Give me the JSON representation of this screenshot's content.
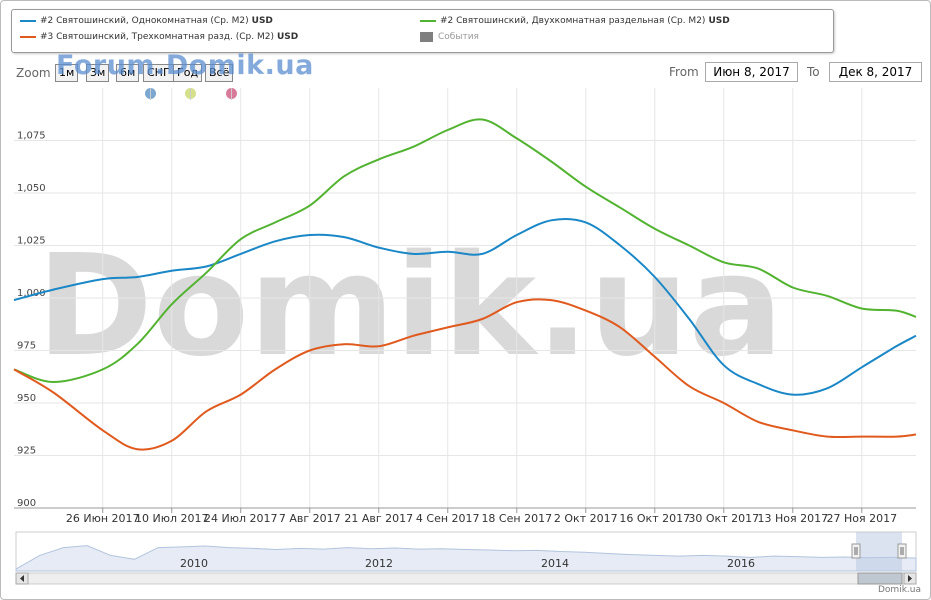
{
  "legend": {
    "items": [
      {
        "label": "#2 Святошинский, Однокомнатная (Ср. М2)",
        "unit": "USD",
        "color": "#1a87c7",
        "kind": "line"
      },
      {
        "label": "#2 Святошинский, Двухкомнатная раздельная (Ср. М2)",
        "unit": "USD",
        "color": "#52b330",
        "kind": "line"
      },
      {
        "label": "#3 Святошинский, Трехкомнатная разд. (Ср. М2)",
        "unit": "USD",
        "color": "#e05a1e",
        "kind": "line"
      },
      {
        "label": "События",
        "unit": "",
        "color": "#7f7f7f",
        "kind": "box"
      }
    ]
  },
  "zoom": {
    "label": "Zoom",
    "buttons": [
      "1м",
      "3м",
      "6м",
      "СНГ",
      "Год",
      "Всё"
    ]
  },
  "range": {
    "from_label": "From",
    "from_value": "Июн 8, 2017",
    "to_label": "To",
    "to_value": "Дек 8, 2017"
  },
  "event_markers": [
    "#7ba7d0",
    "#d4e08a",
    "#d97a9a"
  ],
  "watermark": {
    "small": "Forum.Domik.ua",
    "big": "Domik.ua"
  },
  "footer": {
    "credit": "Domik.ua"
  },
  "navigator": {
    "year_labels": [
      "2010",
      "2012",
      "2014",
      "2016"
    ],
    "colors": {
      "fill": "#e6ebf5",
      "line": "#b2c4dd"
    }
  },
  "chart_data": {
    "type": "line",
    "title": "",
    "xlabel": "",
    "ylabel": "",
    "x_range": [
      "2017-06-08",
      "2017-12-08"
    ],
    "ylim": [
      900,
      1100
    ],
    "grid": true,
    "legend_position": "top",
    "y_ticks": [
      900,
      925,
      950,
      975,
      1000,
      1025,
      1050,
      1075
    ],
    "y_tick_labels": [
      "900",
      "925",
      "950",
      "975",
      "1,000",
      "1,025",
      "1,050",
      "1,075"
    ],
    "x_tick_labels": [
      "26 Июн 2017",
      "10 Июл 2017",
      "24 Июл 2017",
      "7 Авг 2017",
      "21 Авг 2017",
      "4 Сен 2017",
      "18 Сен 2017",
      "2 Окт 2017",
      "16 Окт 2017",
      "30 Окт 2017",
      "13 Ноя 2017",
      "27 Ноя 2017"
    ],
    "x_tick_dates": [
      "2017-06-26",
      "2017-07-10",
      "2017-07-24",
      "2017-08-07",
      "2017-08-21",
      "2017-09-04",
      "2017-09-18",
      "2017-10-02",
      "2017-10-16",
      "2017-10-30",
      "2017-11-13",
      "2017-11-27"
    ],
    "series": [
      {
        "name": "#2 Святошинский, Однокомнатная (Ср. М2)",
        "color": "#1a87c7",
        "x": [
          "2017-06-08",
          "2017-06-16",
          "2017-06-26",
          "2017-07-03",
          "2017-07-10",
          "2017-07-17",
          "2017-07-24",
          "2017-07-31",
          "2017-08-07",
          "2017-08-14",
          "2017-08-21",
          "2017-08-28",
          "2017-09-04",
          "2017-09-11",
          "2017-09-18",
          "2017-09-25",
          "2017-10-02",
          "2017-10-09",
          "2017-10-16",
          "2017-10-23",
          "2017-10-30",
          "2017-11-06",
          "2017-11-13",
          "2017-11-20",
          "2017-11-27",
          "2017-12-04",
          "2017-12-08"
        ],
        "values": [
          999,
          1004,
          1009,
          1010,
          1013,
          1015,
          1021,
          1027,
          1030,
          1029,
          1024,
          1021,
          1022,
          1021,
          1030,
          1037,
          1036,
          1025,
          1010,
          990,
          968,
          959,
          954,
          957,
          967,
          977,
          982
        ]
      },
      {
        "name": "#2 Святошинский, Двухкомнатная раздельная (Ср. М2)",
        "color": "#52b330",
        "x": [
          "2017-06-08",
          "2017-06-16",
          "2017-06-26",
          "2017-07-03",
          "2017-07-10",
          "2017-07-17",
          "2017-07-24",
          "2017-07-31",
          "2017-08-07",
          "2017-08-14",
          "2017-08-21",
          "2017-08-28",
          "2017-09-04",
          "2017-09-11",
          "2017-09-18",
          "2017-09-25",
          "2017-10-02",
          "2017-10-09",
          "2017-10-16",
          "2017-10-23",
          "2017-10-30",
          "2017-11-06",
          "2017-11-13",
          "2017-11-20",
          "2017-11-27",
          "2017-12-04",
          "2017-12-08"
        ],
        "values": [
          966,
          960,
          966,
          978,
          997,
          1012,
          1028,
          1036,
          1044,
          1058,
          1066,
          1072,
          1080,
          1085,
          1076,
          1065,
          1053,
          1043,
          1033,
          1025,
          1017,
          1014,
          1005,
          1001,
          995,
          994,
          991
        ]
      },
      {
        "name": "#3 Святошинский, Трехкомнатная разд. (Ср. М2)",
        "color": "#e05a1e",
        "x": [
          "2017-06-08",
          "2017-06-16",
          "2017-06-26",
          "2017-07-03",
          "2017-07-10",
          "2017-07-17",
          "2017-07-24",
          "2017-07-31",
          "2017-08-07",
          "2017-08-14",
          "2017-08-21",
          "2017-08-28",
          "2017-09-04",
          "2017-09-11",
          "2017-09-18",
          "2017-09-25",
          "2017-10-02",
          "2017-10-09",
          "2017-10-16",
          "2017-10-23",
          "2017-10-30",
          "2017-11-06",
          "2017-11-13",
          "2017-11-20",
          "2017-11-27",
          "2017-12-04",
          "2017-12-08"
        ],
        "values": [
          966,
          955,
          937,
          928,
          932,
          946,
          954,
          966,
          975,
          978,
          977,
          982,
          986,
          990,
          998,
          999,
          994,
          986,
          972,
          958,
          950,
          941,
          937,
          934,
          934,
          934,
          935
        ]
      }
    ]
  }
}
